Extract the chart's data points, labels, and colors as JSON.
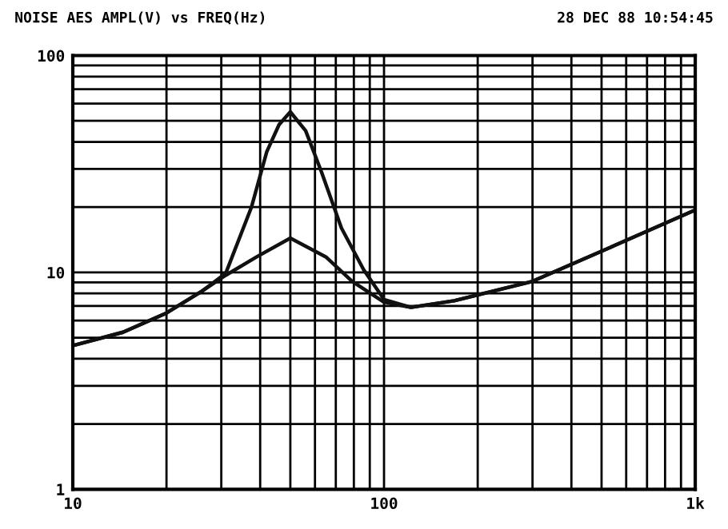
{
  "chart_data": {
    "type": "line",
    "title": "NOISE AES AMPL(V) vs FREQ(Hz)",
    "annotations": [
      "28 DEC 88 10:54:45"
    ],
    "log": "xy",
    "grid": true,
    "marker": "none",
    "line_style": "solid",
    "xlim": [
      10,
      1000
    ],
    "ylim": [
      1,
      100
    ],
    "xticks": [
      10,
      {
        "value": 20,
        "label": null
      },
      {
        "value": 30,
        "label": null
      },
      {
        "value": 40,
        "label": null
      },
      {
        "value": 50,
        "label": null
      },
      {
        "value": 60,
        "label": null
      },
      {
        "value": 70,
        "label": null
      },
      {
        "value": 80,
        "label": null
      },
      {
        "value": 90,
        "label": null
      },
      100,
      {
        "value": 200,
        "label": null
      },
      {
        "value": 300,
        "label": null
      },
      {
        "value": 400,
        "label": null
      },
      {
        "value": 500,
        "label": null
      },
      {
        "value": 600,
        "label": null
      },
      {
        "value": 700,
        "label": null
      },
      {
        "value": 800,
        "label": null
      },
      {
        "value": 900,
        "label": null
      },
      {
        "value": 1000,
        "label": "1k"
      }
    ],
    "yticks": [
      1,
      {
        "value": 2,
        "label": null
      },
      {
        "value": 3,
        "label": null
      },
      {
        "value": 4,
        "label": null
      },
      {
        "value": 5,
        "label": null
      },
      {
        "value": 6,
        "label": null
      },
      {
        "value": 7,
        "label": null
      },
      {
        "value": 8,
        "label": null
      },
      {
        "value": 9,
        "label": null
      },
      10,
      {
        "value": 20,
        "label": null
      },
      {
        "value": 30,
        "label": null
      },
      {
        "value": 40,
        "label": null
      },
      {
        "value": 50,
        "label": null
      },
      {
        "value": 60,
        "label": null
      },
      {
        "value": 70,
        "label": null
      },
      {
        "value": 80,
        "label": null
      },
      {
        "value": 90,
        "label": null
      },
      100
    ],
    "series": [
      {
        "color": "#111111",
        "x": [
          10,
          14.5,
          20,
          26,
          31,
          39,
          50,
          65,
          79,
          100,
          122,
          168,
          300,
          550,
          1000
        ],
        "values": [
          4.6,
          5.3,
          6.5,
          8.2,
          9.7,
          11.8,
          14.4,
          11.8,
          9.1,
          7.3,
          6.9,
          7.4,
          9.1,
          13.3,
          19.4
        ]
      },
      {
        "color": "#111111",
        "x": [
          10,
          14.5,
          20,
          26,
          31,
          37.5,
          42,
          46,
          50,
          56,
          63,
          73,
          86,
          100,
          122,
          168,
          300,
          550,
          1000
        ],
        "values": [
          4.6,
          5.3,
          6.5,
          8.2,
          9.9,
          20,
          36,
          48,
          55,
          45,
          29,
          16,
          10.3,
          7.5,
          6.9,
          7.4,
          9.1,
          13.3,
          19.4
        ]
      }
    ]
  }
}
